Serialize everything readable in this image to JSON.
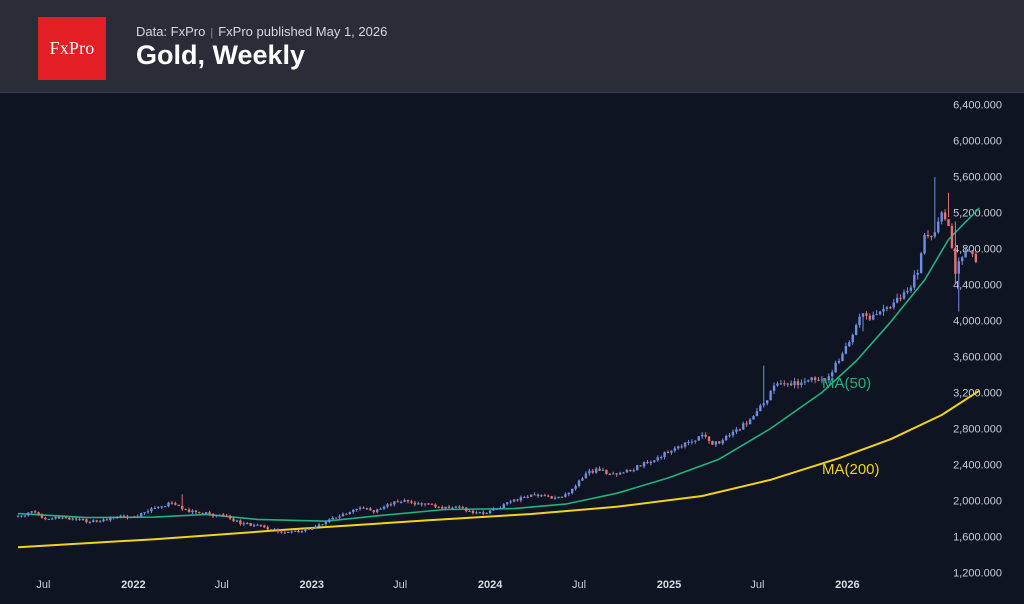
{
  "header": {
    "logo_text": "FxPro",
    "data_source": "Data: FxPro",
    "separator": "|",
    "published": "FxPro published May 1, 2026",
    "title": "Gold, Weekly"
  },
  "colors": {
    "background": "#0e1422",
    "header_bg": "#2a2d37",
    "logo_red": "#e31f26",
    "candle_up": "#6f8fe0",
    "candle_down": "#e57373",
    "ma50": "#1fb37f",
    "ma200": "#f2d21b"
  },
  "chart_data": {
    "type": "candlestick",
    "title": "Gold, Weekly",
    "y_ticks": [
      1200,
      1600,
      2000,
      2400,
      2800,
      3200,
      3600,
      4000,
      4400,
      4800,
      5200,
      5600,
      6000,
      6400
    ],
    "y_tick_labels": [
      "1,200.000",
      "1,600.000",
      "2,000.000",
      "2,400.000",
      "2,800.000",
      "3,200.000",
      "3,600.000",
      "4,000.000",
      "4,400.000",
      "4,800.000",
      "5,200.000",
      "5,600.000",
      "6,000.000",
      "6,400.000"
    ],
    "ylim": [
      1150,
      6450
    ],
    "x_axis": "time (weekly)",
    "xlim": [
      "2021-05-10",
      "2026-05-01"
    ],
    "x_ticks": [
      {
        "label": "Jul",
        "date": "2021-07-01",
        "major": false
      },
      {
        "label": "2022",
        "date": "2022-01-01",
        "major": true
      },
      {
        "label": "Jul",
        "date": "2022-07-01",
        "major": false
      },
      {
        "label": "2023",
        "date": "2023-01-01",
        "major": true
      },
      {
        "label": "Jul",
        "date": "2023-07-01",
        "major": false
      },
      {
        "label": "2024",
        "date": "2024-01-01",
        "major": true
      },
      {
        "label": "Jul",
        "date": "2024-07-01",
        "major": false
      },
      {
        "label": "2025",
        "date": "2025-01-01",
        "major": true
      },
      {
        "label": "Jul",
        "date": "2025-07-01",
        "major": false
      },
      {
        "label": "2026",
        "date": "2026-01-01",
        "major": true
      }
    ],
    "start_date": "2021-05-10",
    "candle_anchors": [
      [
        0,
        1830
      ],
      [
        4,
        1880
      ],
      [
        8,
        1790
      ],
      [
        12,
        1800
      ],
      [
        17,
        1790
      ],
      [
        21,
        1760
      ],
      [
        27,
        1805
      ],
      [
        33,
        1820
      ],
      [
        38,
        1880
      ],
      [
        42,
        1935
      ],
      [
        45,
        1970
      ],
      [
        48,
        1905
      ],
      [
        53,
        1860
      ],
      [
        58,
        1840
      ],
      [
        62,
        1800
      ],
      [
        65,
        1740
      ],
      [
        70,
        1730
      ],
      [
        74,
        1680
      ],
      [
        79,
        1650
      ],
      [
        83,
        1660
      ],
      [
        87,
        1710
      ],
      [
        91,
        1790
      ],
      [
        96,
        1850
      ],
      [
        100,
        1920
      ],
      [
        104,
        1870
      ],
      [
        107,
        1930
      ],
      [
        110,
        1990
      ],
      [
        114,
        1990
      ],
      [
        118,
        1955
      ],
      [
        122,
        1930
      ],
      [
        126,
        1920
      ],
      [
        130,
        1920
      ],
      [
        133,
        1860
      ],
      [
        137,
        1860
      ],
      [
        140,
        1910
      ],
      [
        144,
        1990
      ],
      [
        148,
        2040
      ],
      [
        152,
        2050
      ],
      [
        156,
        2020
      ],
      [
        159,
        2040
      ],
      [
        163,
        2160
      ],
      [
        167,
        2330
      ],
      [
        170,
        2330
      ],
      [
        174,
        2300
      ],
      [
        178,
        2340
      ],
      [
        182,
        2380
      ],
      [
        187,
        2480
      ],
      [
        192,
        2580
      ],
      [
        196,
        2650
      ],
      [
        200,
        2730
      ],
      [
        203,
        2620
      ],
      [
        206,
        2670
      ],
      [
        210,
        2790
      ],
      [
        214,
        2900
      ],
      [
        218,
        3080
      ],
      [
        222,
        3300
      ],
      [
        225,
        3300
      ],
      [
        229,
        3310
      ],
      [
        233,
        3340
      ],
      [
        237,
        3380
      ],
      [
        240,
        3550
      ],
      [
        243,
        3760
      ],
      [
        247,
        4080
      ],
      [
        249,
        4010
      ],
      [
        252,
        4100
      ],
      [
        256,
        4200
      ],
      [
        260,
        4330
      ],
      [
        263,
        4530
      ],
      [
        265,
        4950
      ],
      [
        268,
        4980
      ],
      [
        270,
        5200
      ],
      [
        272,
        5050
      ],
      [
        274,
        4520
      ],
      [
        276,
        4700
      ],
      [
        278,
        4780
      ],
      [
        280,
        4650
      ]
    ],
    "candle_events": [
      {
        "week": 48,
        "high": 2070
      },
      {
        "week": 209,
        "high": 2790
      },
      {
        "week": 218,
        "high": 3500
      },
      {
        "week": 247,
        "low": 3880
      },
      {
        "week": 268,
        "high": 5595
      },
      {
        "week": 272,
        "high": 5420,
        "low": 5150
      },
      {
        "week": 274,
        "high": 5100,
        "low": 4400
      },
      {
        "week": 275,
        "low": 4100
      }
    ],
    "series": [
      {
        "name": "MA(50)",
        "type": "line",
        "color": "#1fb37f",
        "points": [
          [
            0,
            1855
          ],
          [
            20,
            1810
          ],
          [
            40,
            1815
          ],
          [
            55,
            1845
          ],
          [
            70,
            1790
          ],
          [
            90,
            1770
          ],
          [
            105,
            1830
          ],
          [
            125,
            1900
          ],
          [
            145,
            1910
          ],
          [
            160,
            1960
          ],
          [
            175,
            2080
          ],
          [
            190,
            2250
          ],
          [
            205,
            2460
          ],
          [
            220,
            2800
          ],
          [
            235,
            3200
          ],
          [
            245,
            3550
          ],
          [
            255,
            3980
          ],
          [
            265,
            4450
          ],
          [
            272,
            4900
          ],
          [
            281,
            5250
          ]
        ]
      },
      {
        "name": "MA(200)",
        "type": "line",
        "color": "#f2d21b",
        "points": [
          [
            0,
            1480
          ],
          [
            40,
            1570
          ],
          [
            80,
            1680
          ],
          [
            120,
            1780
          ],
          [
            150,
            1850
          ],
          [
            175,
            1930
          ],
          [
            200,
            2050
          ],
          [
            220,
            2230
          ],
          [
            240,
            2470
          ],
          [
            255,
            2680
          ],
          [
            270,
            2950
          ],
          [
            281,
            3220
          ]
        ]
      }
    ],
    "annotations": [
      {
        "text": "MA(50)",
        "color": "#1fb37f"
      },
      {
        "text": "MA(200)",
        "color": "#f2d21b"
      }
    ]
  }
}
